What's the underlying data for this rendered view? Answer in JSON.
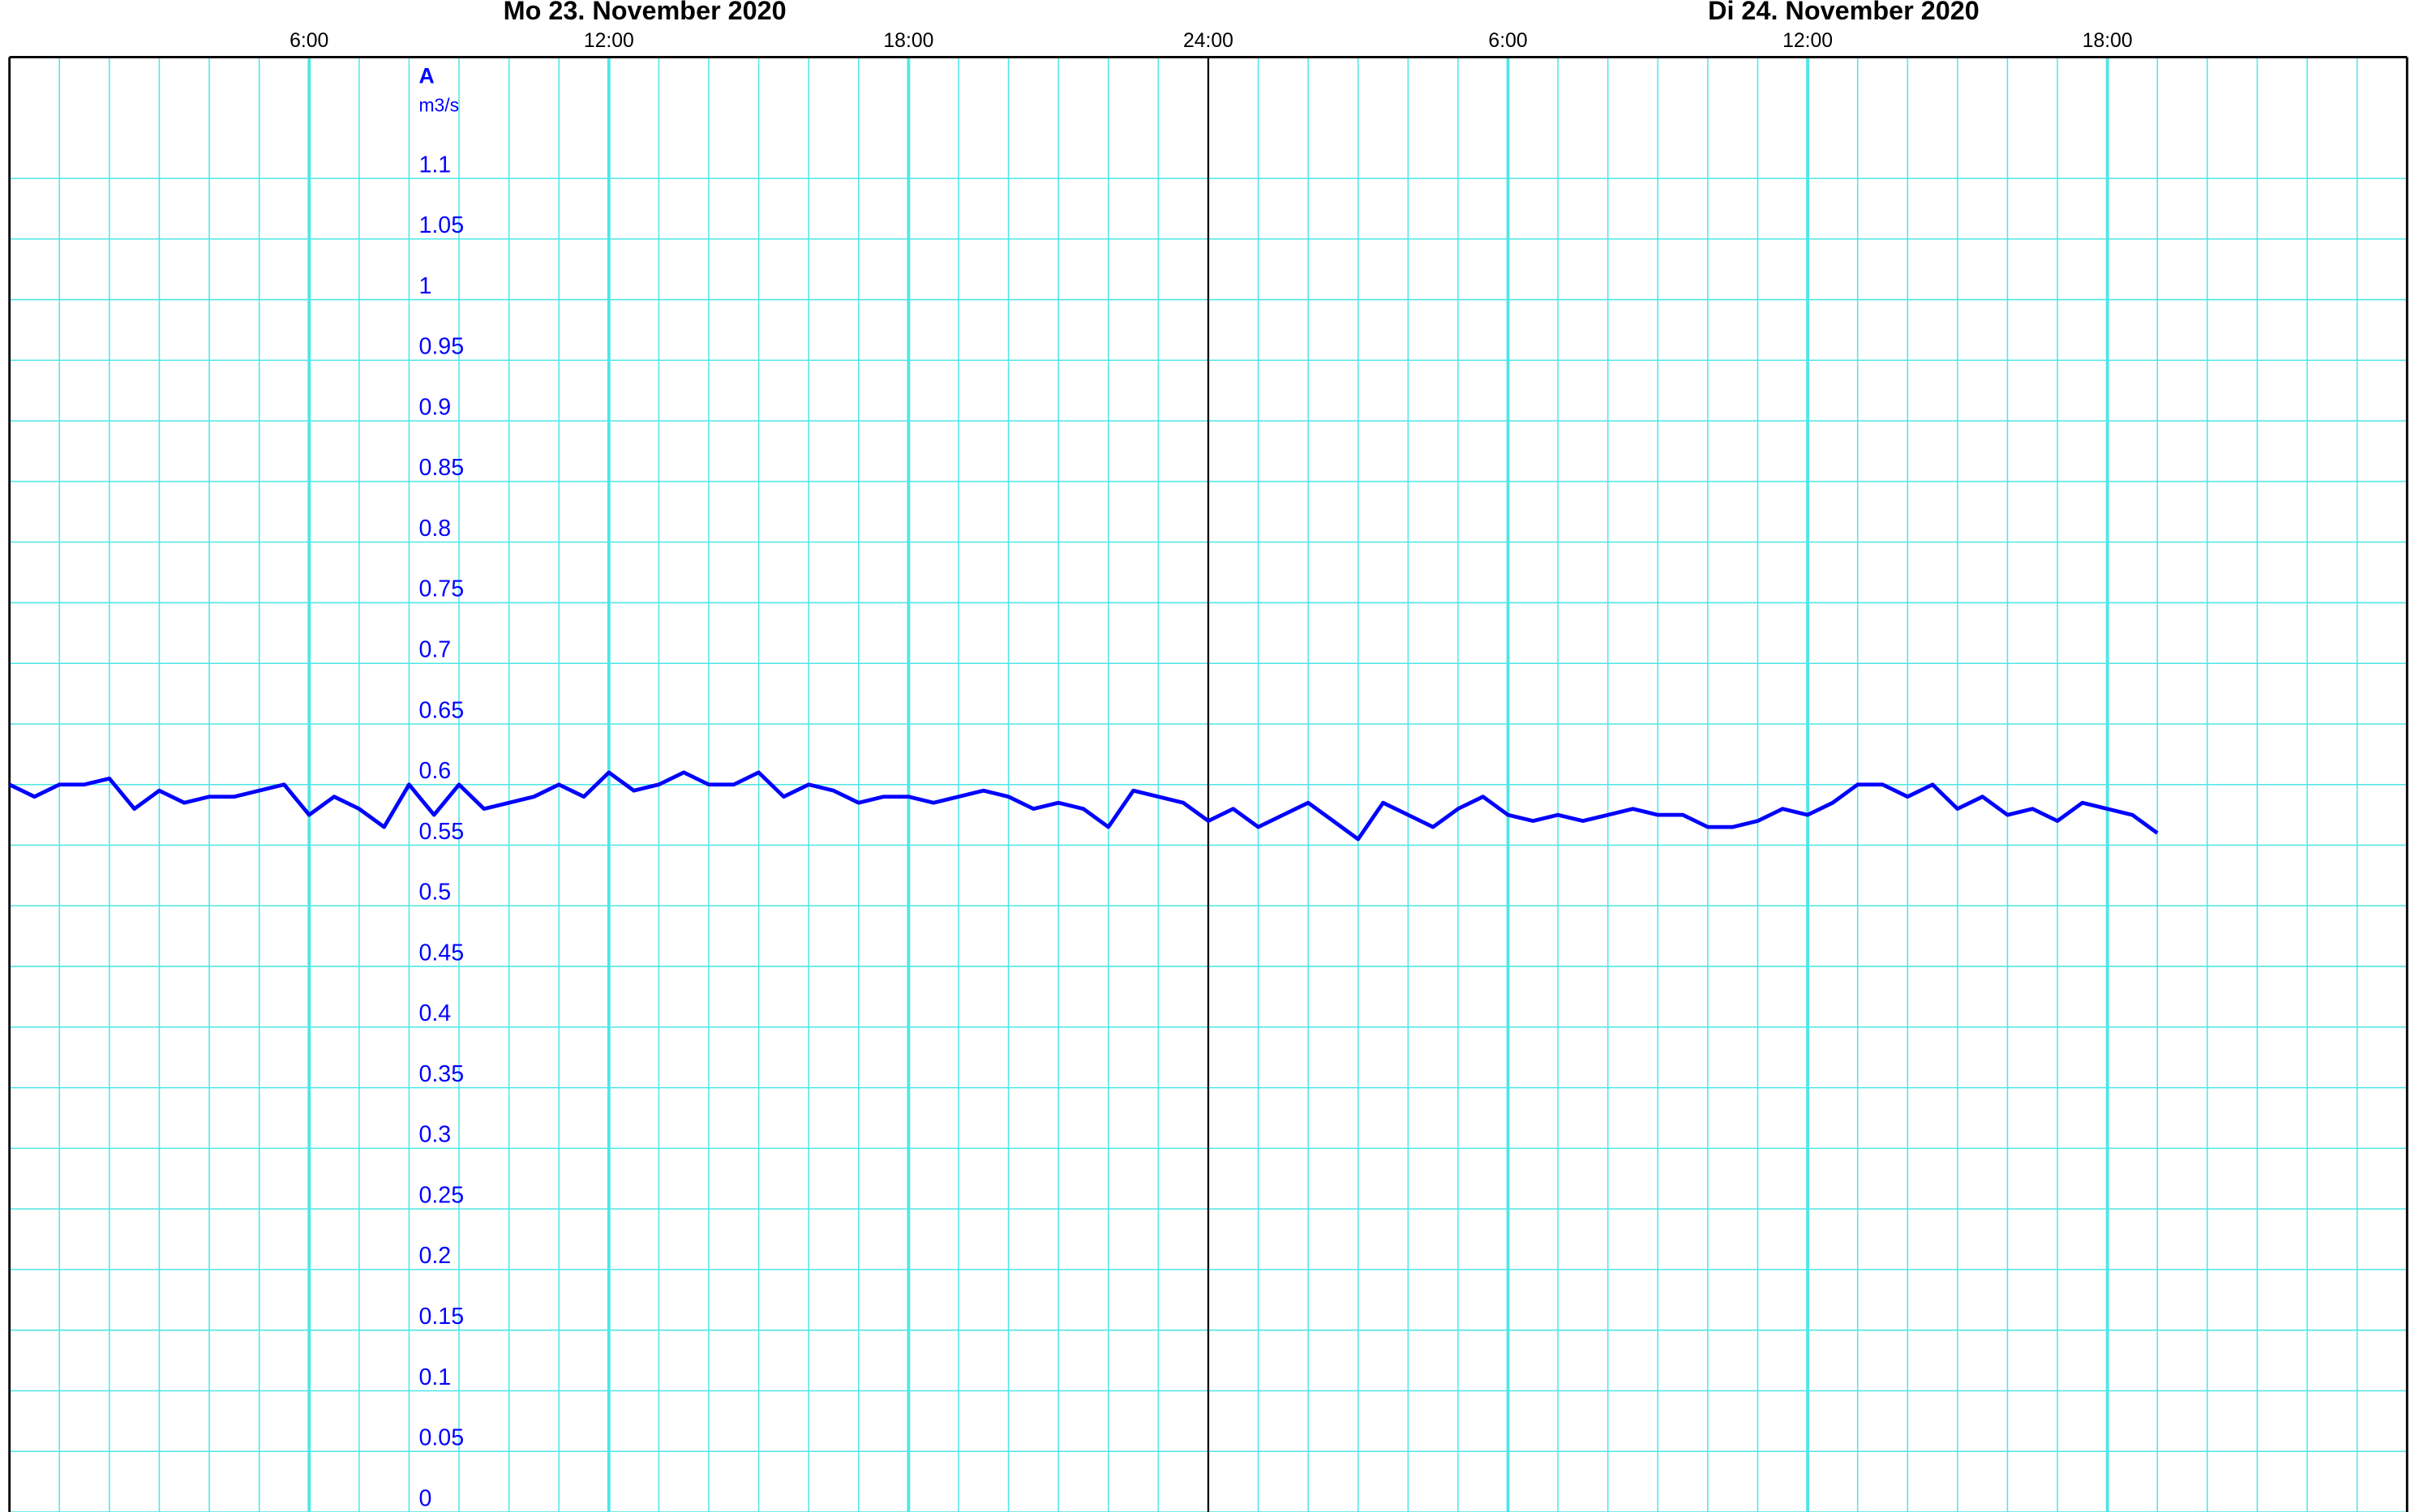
{
  "chart_data": {
    "type": "line",
    "day_labels": [
      "Mo  23. November  2020",
      "Di  24. November  2020"
    ],
    "y_axis_name": "A",
    "y_axis_unit": "m3/s",
    "xlim": [
      0,
      48
    ],
    "xticks": [
      {
        "value": 6,
        "label": "6:00"
      },
      {
        "value": 12,
        "label": "12:00"
      },
      {
        "value": 18,
        "label": "18:00"
      },
      {
        "value": 24,
        "label": "24:00"
      },
      {
        "value": 30,
        "label": "6:00"
      },
      {
        "value": 36,
        "label": "12:00"
      },
      {
        "value": 42,
        "label": "18:00"
      }
    ],
    "xminorticks": [
      1,
      2,
      3,
      4,
      5,
      7,
      8,
      9,
      10,
      11,
      13,
      14,
      15,
      16,
      17,
      19,
      20,
      21,
      22,
      23,
      25,
      26,
      27,
      28,
      29,
      31,
      32,
      33,
      34,
      35,
      37,
      38,
      39,
      40,
      41,
      43,
      44,
      45,
      46,
      47
    ],
    "ylim": [
      0,
      1.2
    ],
    "yticks": [
      0,
      0.05,
      0.1,
      0.15,
      0.2,
      0.25,
      0.3,
      0.35,
      0.4,
      0.45,
      0.5,
      0.55,
      0.6,
      0.65,
      0.7,
      0.75,
      0.8,
      0.85,
      0.9,
      0.95,
      1,
      1.05,
      1.1
    ],
    "grid": true,
    "grid_color": "#4ee6e6",
    "day_line_color": "#000000",
    "x": [
      0,
      0.5,
      1,
      1.5,
      2,
      2.5,
      3,
      3.5,
      4,
      4.5,
      5,
      5.5,
      6,
      6.5,
      7,
      7.5,
      8,
      8.5,
      9,
      9.5,
      10,
      10.5,
      11,
      11.5,
      12,
      12.5,
      13,
      13.5,
      14,
      14.5,
      15,
      15.5,
      16,
      16.5,
      17,
      17.5,
      18,
      18.5,
      19,
      19.5,
      20,
      20.5,
      21,
      21.5,
      22,
      22.5,
      23,
      23.5,
      24,
      24.5,
      25,
      25.5,
      26,
      26.5,
      27,
      27.5,
      28,
      28.5,
      29,
      29.5,
      30,
      30.5,
      31,
      31.5,
      32,
      32.5,
      33,
      33.5,
      34,
      34.5,
      35,
      35.5,
      36,
      36.5,
      37,
      37.5,
      38,
      38.5,
      39,
      39.5,
      40,
      40.5,
      41,
      41.5,
      42,
      42.5,
      43
    ],
    "series": [
      {
        "color": "#0000ff",
        "values": [
          0.6,
          0.59,
          0.6,
          0.6,
          0.605,
          0.58,
          0.595,
          0.585,
          0.59,
          0.59,
          0.595,
          0.6,
          0.575,
          0.59,
          0.58,
          0.565,
          0.6,
          0.575,
          0.6,
          0.58,
          0.585,
          0.59,
          0.6,
          0.59,
          0.61,
          0.595,
          0.6,
          0.61,
          0.6,
          0.6,
          0.61,
          0.59,
          0.6,
          0.595,
          0.585,
          0.59,
          0.59,
          0.585,
          0.59,
          0.595,
          0.59,
          0.58,
          0.585,
          0.58,
          0.565,
          0.595,
          0.59,
          0.585,
          0.57,
          0.58,
          0.565,
          0.575,
          0.585,
          0.57,
          0.555,
          0.585,
          0.575,
          0.565,
          0.58,
          0.59,
          0.575,
          0.57,
          0.575,
          0.57,
          0.575,
          0.58,
          0.575,
          0.575,
          0.565,
          0.565,
          0.57,
          0.58,
          0.575,
          0.585,
          0.6,
          0.6,
          0.59,
          0.6,
          0.58,
          0.59,
          0.575,
          0.58,
          0.57,
          0.585,
          0.58,
          0.575,
          0.56
        ]
      }
    ]
  }
}
